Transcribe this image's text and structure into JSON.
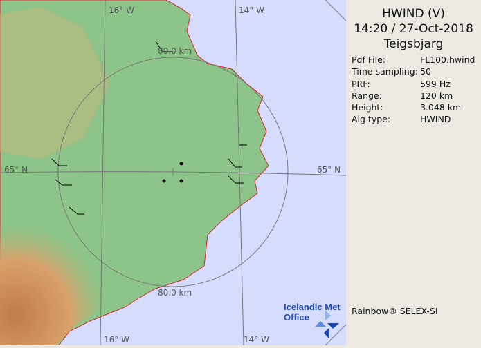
{
  "header": {
    "product": "HWIND (V)",
    "datetime": "14:20 / 27-Oct-2018",
    "site": "Teigsbjarg"
  },
  "info": [
    {
      "label": "Pdf File:",
      "value": "FL100.hwind"
    },
    {
      "label": "Time sampling:",
      "value": "50"
    },
    {
      "label": "PRF:",
      "value": "599 Hz"
    },
    {
      "label": "Range:",
      "value": "120 km"
    },
    {
      "label": "Height:",
      "value": "3.048 km"
    },
    {
      "label": "Alg type:",
      "value": "HWIND"
    }
  ],
  "footer": "Rainbow® SELEX-SI",
  "logo": {
    "line1": "Icelandic Met",
    "line2": "Office"
  },
  "map": {
    "lon_labels": [
      "16° W",
      "14° W",
      "16° W",
      "14° W"
    ],
    "lat_labels": [
      "65° N",
      "65° N"
    ],
    "range_labels": [
      "80.0 km",
      "80.0 km"
    ],
    "colors": {
      "sea": "#d5dcfd",
      "coast": "#e0202a",
      "lowland": "#8cc48a",
      "highland": "#d9a06a",
      "ring": "#777777"
    }
  }
}
